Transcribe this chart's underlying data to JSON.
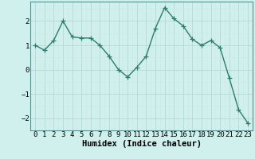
{
  "x": [
    0,
    1,
    2,
    3,
    4,
    5,
    6,
    7,
    8,
    9,
    10,
    11,
    12,
    13,
    14,
    15,
    16,
    17,
    18,
    19,
    20,
    21,
    22,
    23
  ],
  "y": [
    1.0,
    0.8,
    1.2,
    2.0,
    1.35,
    1.3,
    1.3,
    1.0,
    0.55,
    0.0,
    -0.3,
    0.1,
    0.55,
    1.7,
    2.55,
    2.1,
    1.8,
    1.25,
    1.0,
    1.2,
    0.9,
    -0.35,
    -1.65,
    -2.2
  ],
  "line_color": "#2d7d6e",
  "marker": "+",
  "markersize": 4,
  "linewidth": 1.0,
  "bg_color": "#cff0ec",
  "grid_color_major": "#b8d8d4",
  "grid_color_minor": "#d0e8e4",
  "xlabel": "Humidex (Indice chaleur)",
  "xlim": [
    -0.5,
    23.5
  ],
  "ylim": [
    -2.5,
    2.8
  ],
  "yticks": [
    -2,
    -1,
    0,
    1,
    2
  ],
  "xticks": [
    0,
    1,
    2,
    3,
    4,
    5,
    6,
    7,
    8,
    9,
    10,
    11,
    12,
    13,
    14,
    15,
    16,
    17,
    18,
    19,
    20,
    21,
    22,
    23
  ],
  "xlabel_fontsize": 7.5,
  "tick_fontsize": 6.5
}
